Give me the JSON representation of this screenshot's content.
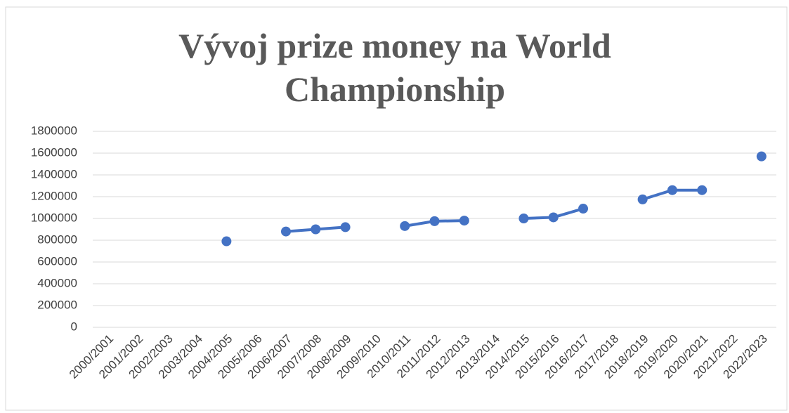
{
  "chart_data": {
    "type": "line",
    "title": "Vývoj prize money na World Championship",
    "categories": [
      "2000/2001",
      "2001/2002",
      "2002/2003",
      "2003/2004",
      "2004/2005",
      "2005/2006",
      "2006/2007",
      "2007/2008",
      "2008/2009",
      "2009/2010",
      "2010/2011",
      "2011/2012",
      "2012/2013",
      "2013/2014",
      "2014/2015",
      "2015/2016",
      "2016/2017",
      "2017/2018",
      "2018/2019",
      "2019/2020",
      "2020/2021",
      "2021/2022",
      "2022/2023"
    ],
    "series": [
      {
        "name": "Prize money",
        "color": "#4472c4",
        "values": [
          null,
          null,
          null,
          null,
          790000,
          null,
          880000,
          900000,
          920000,
          null,
          930000,
          975000,
          980000,
          null,
          1000000,
          1010000,
          1090000,
          null,
          1175000,
          1260000,
          1260000,
          null,
          1570000
        ]
      }
    ],
    "ylim": [
      0,
      1800000
    ],
    "yticks": [
      0,
      200000,
      400000,
      600000,
      800000,
      1000000,
      1200000,
      1400000,
      1600000,
      1800000
    ],
    "grid": true
  }
}
